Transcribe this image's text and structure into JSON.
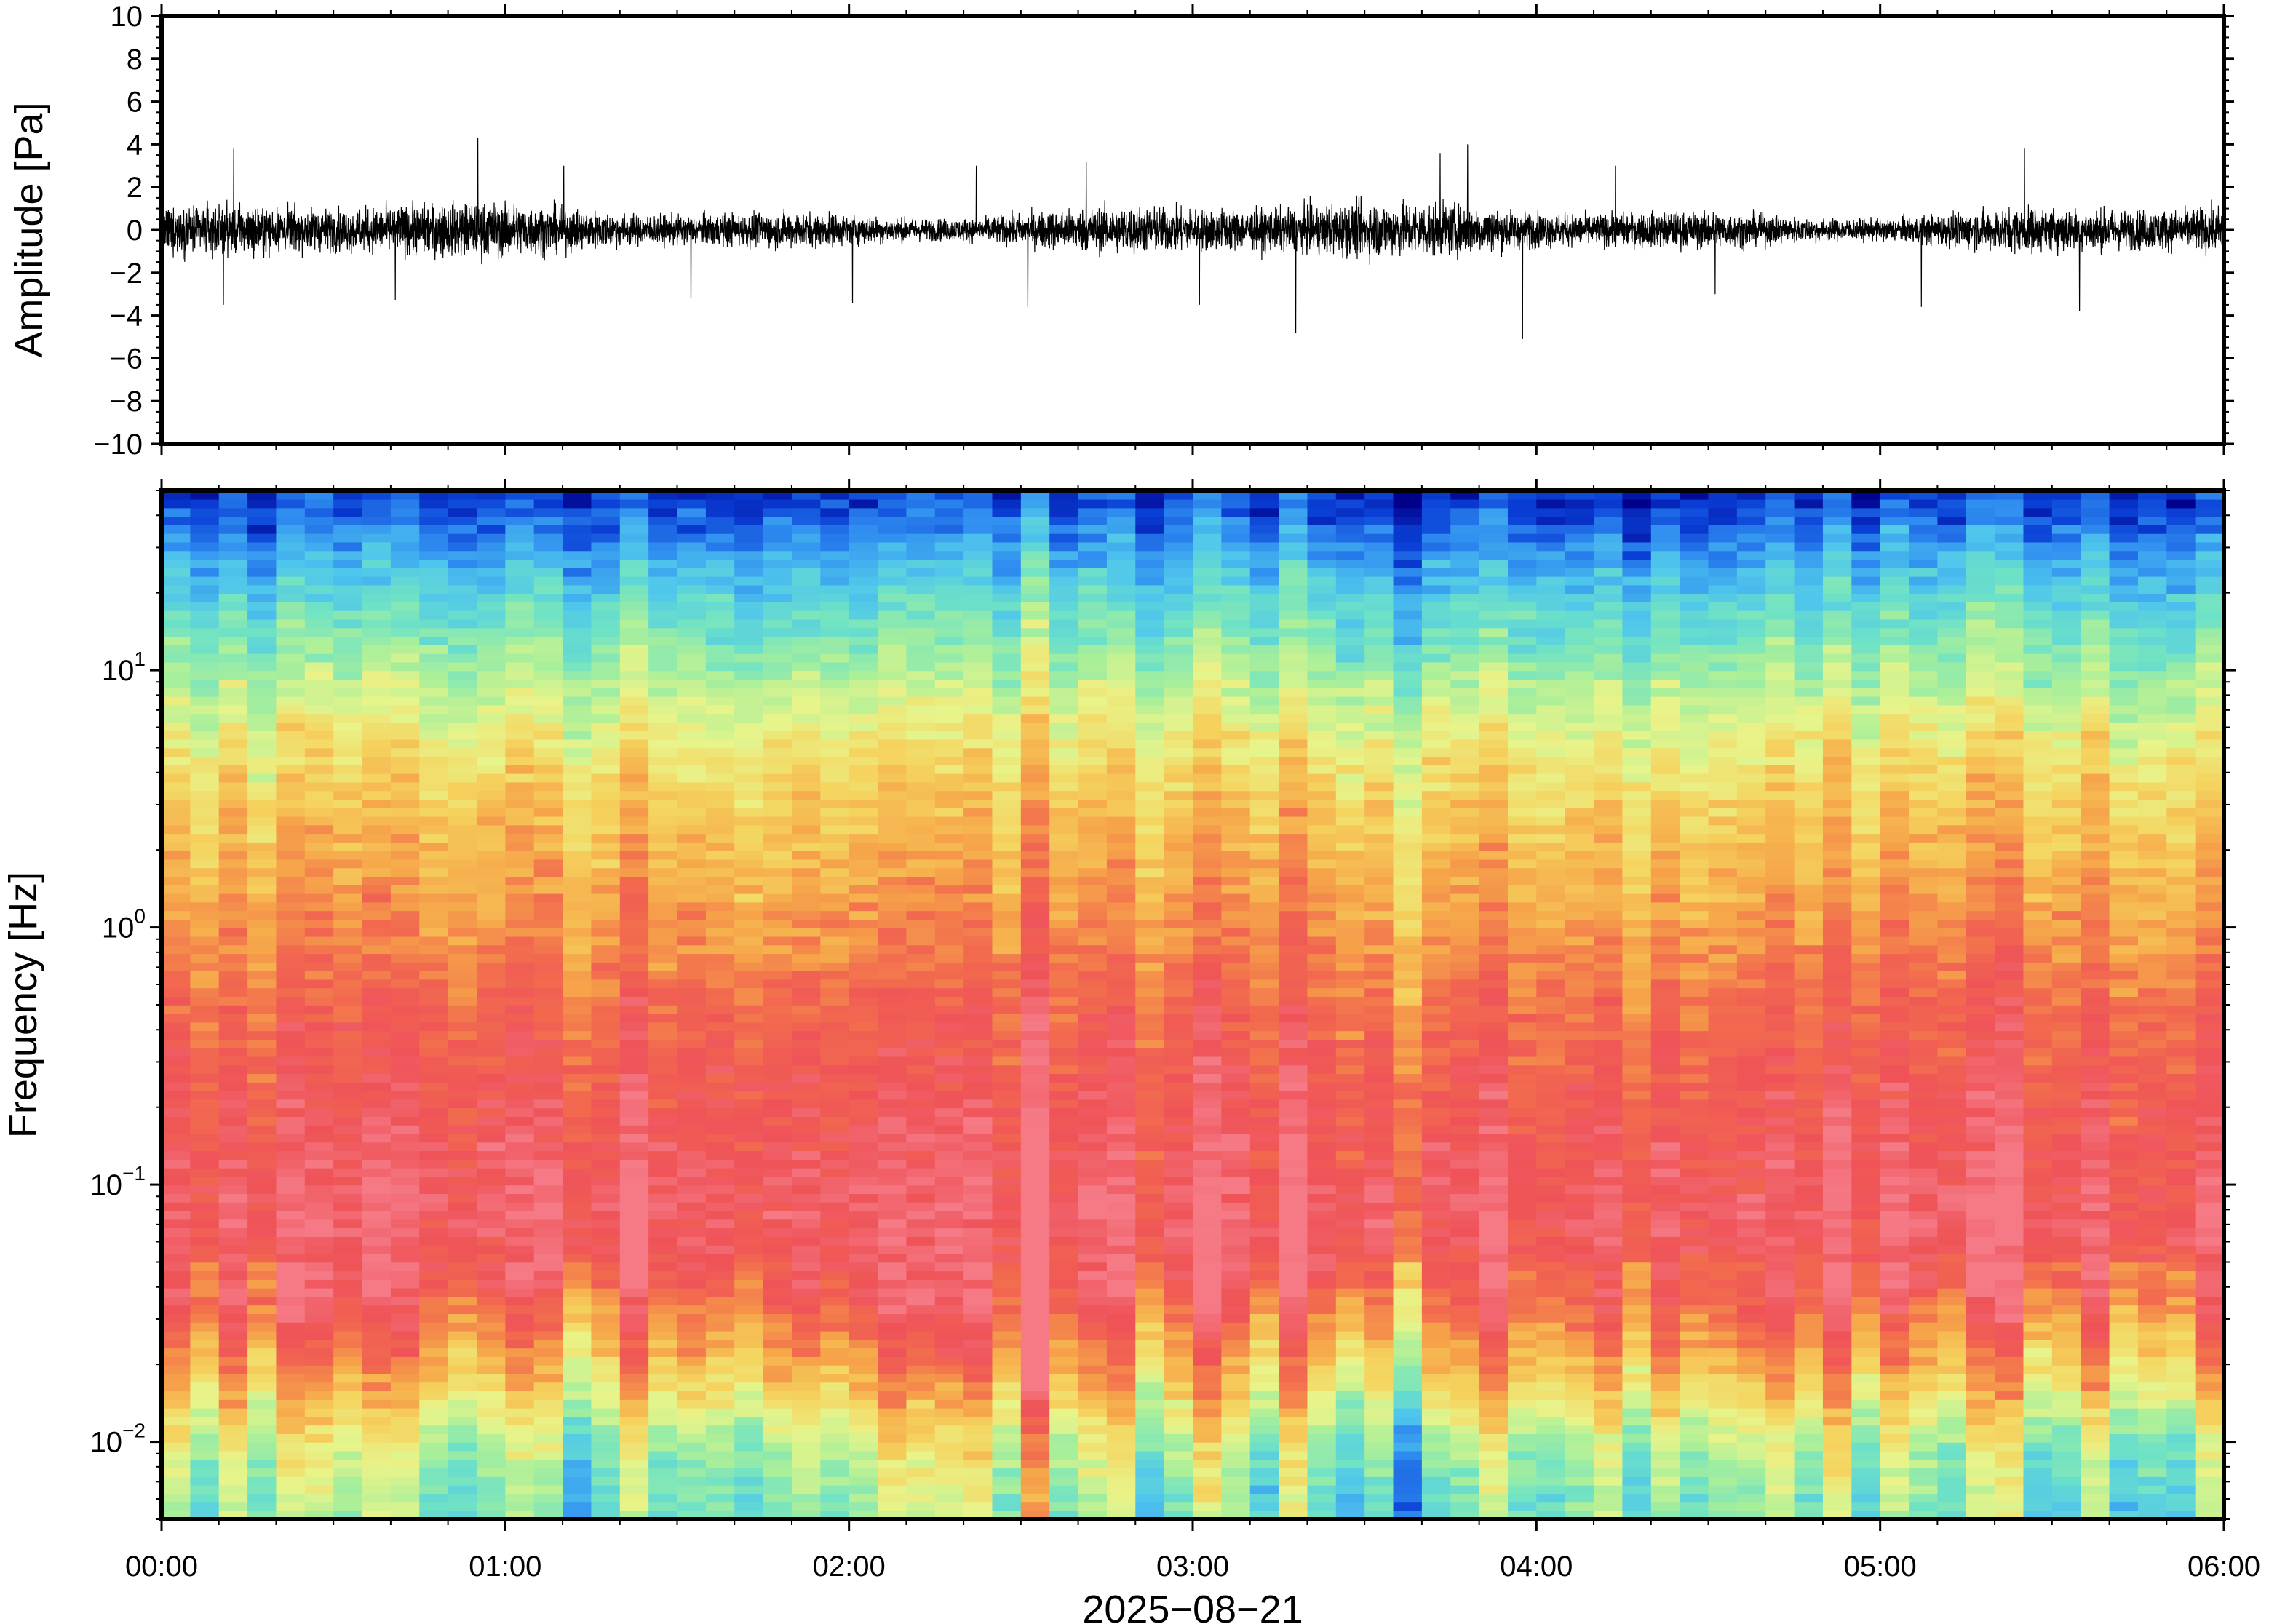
{
  "chart_data": [
    {
      "type": "line",
      "panel": "waveform",
      "ylabel": "Amplitude [Pa]",
      "ylim": [
        -10,
        10
      ],
      "yticks": [
        10,
        8,
        6,
        4,
        2,
        0,
        -2,
        -4,
        -6,
        -8,
        -10
      ],
      "ytick_labels": [
        "10",
        "8",
        "6",
        "4",
        "2",
        "0",
        "−2",
        "−4",
        "−6",
        "−8",
        "−10"
      ],
      "xlim_hours": [
        0,
        6
      ],
      "series": [
        {
          "color": "#000000",
          "typical_envelope_pa": 1.2,
          "peaks": [
            {
              "t": 0.21,
              "v": 3.8
            },
            {
              "t": 0.18,
              "v": -3.5
            },
            {
              "t": 0.68,
              "v": -3.3
            },
            {
              "t": 0.92,
              "v": 4.3
            },
            {
              "t": 1.17,
              "v": 3.0
            },
            {
              "t": 1.54,
              "v": -3.2
            },
            {
              "t": 2.01,
              "v": -3.4
            },
            {
              "t": 2.37,
              "v": 3.0
            },
            {
              "t": 2.52,
              "v": -3.6
            },
            {
              "t": 2.69,
              "v": 3.2
            },
            {
              "t": 3.02,
              "v": -3.5
            },
            {
              "t": 3.3,
              "v": -4.8
            },
            {
              "t": 3.72,
              "v": 3.6
            },
            {
              "t": 3.8,
              "v": 4.0
            },
            {
              "t": 3.96,
              "v": -5.1
            },
            {
              "t": 4.23,
              "v": 3.0
            },
            {
              "t": 4.52,
              "v": -3.0
            },
            {
              "t": 5.12,
              "v": -3.6
            },
            {
              "t": 5.42,
              "v": 3.8
            },
            {
              "t": 5.58,
              "v": -3.8
            }
          ]
        }
      ]
    },
    {
      "type": "heatmap",
      "panel": "spectrogram",
      "ylabel": "Frequency [Hz]",
      "yscale": "log",
      "ylim": [
        0.005,
        50
      ],
      "yticks": [
        0.01,
        0.1,
        1,
        10
      ],
      "ytick_labels": [
        {
          "base": "10",
          "exp": "−2"
        },
        {
          "base": "10",
          "exp": "−1"
        },
        {
          "base": "10",
          "exp": "0"
        },
        {
          "base": "10",
          "exp": "1"
        }
      ],
      "colormap": [
        "#00008b",
        "#0a3fd6",
        "#2f8df0",
        "#4fc6ec",
        "#6ee2c6",
        "#a9ef9a",
        "#e8f48a",
        "#f5d35e",
        "#f6a74a",
        "#f26b4e",
        "#ef5358",
        "#f57a86"
      ],
      "frequency_profile": [
        {
          "f": 0.006,
          "level": 0.42
        },
        {
          "f": 0.01,
          "level": 0.5
        },
        {
          "f": 0.02,
          "level": 0.72
        },
        {
          "f": 0.04,
          "level": 0.9
        },
        {
          "f": 0.08,
          "level": 0.95
        },
        {
          "f": 0.2,
          "level": 0.9
        },
        {
          "f": 0.5,
          "level": 0.84
        },
        {
          "f": 1,
          "level": 0.76
        },
        {
          "f": 3,
          "level": 0.66
        },
        {
          "f": 6,
          "level": 0.56
        },
        {
          "f": 12,
          "level": 0.42
        },
        {
          "f": 25,
          "level": 0.26
        },
        {
          "f": 45,
          "level": 0.1
        }
      ]
    }
  ],
  "x_axis": {
    "ticks": [
      "00:00",
      "01:00",
      "02:00",
      "03:00",
      "04:00",
      "05:00",
      "06:00"
    ],
    "date": "2025−08−21"
  }
}
